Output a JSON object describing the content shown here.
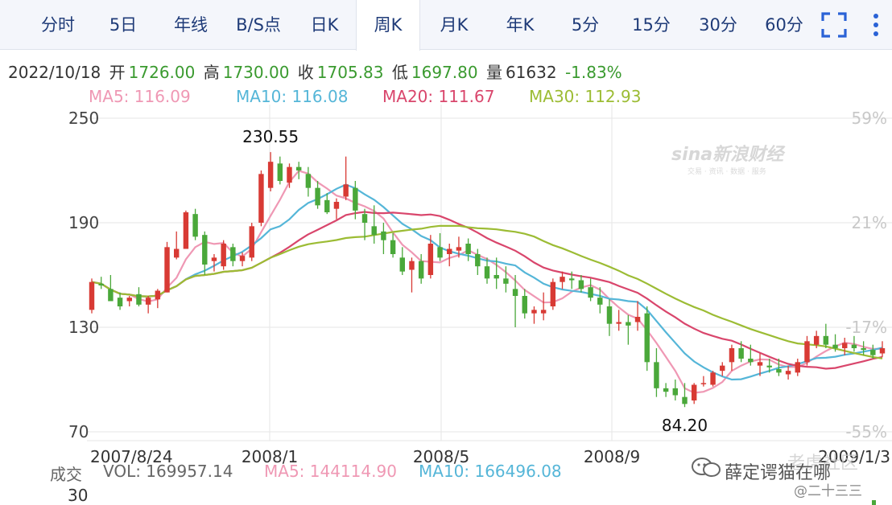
{
  "tabs": [
    {
      "label": "分时",
      "active": false
    },
    {
      "label": "5日",
      "active": false
    },
    {
      "label": "年线",
      "active": false
    },
    {
      "label": "B/S点",
      "active": false
    },
    {
      "label": "日K",
      "active": false
    },
    {
      "label": "周K",
      "active": true
    },
    {
      "label": "月K",
      "active": false
    },
    {
      "label": "年K",
      "active": false
    },
    {
      "label": "5分",
      "active": false
    },
    {
      "label": "15分",
      "active": false
    },
    {
      "label": "30分",
      "active": false
    },
    {
      "label": "60分",
      "active": false
    }
  ],
  "toolbar": {
    "fullscreen_icon": "fullscreen-icon",
    "more_icon": "more-vertical-icon"
  },
  "quote": {
    "date": "2022/10/18",
    "open_label": "开",
    "open": "1726.00",
    "high_label": "高",
    "high": "1730.00",
    "close_label": "收",
    "close": "1705.83",
    "low_label": "低",
    "low": "1697.80",
    "volume_label": "量",
    "volume": "61632",
    "change_pct": "-1.83%"
  },
  "ma_legend": [
    {
      "label": "MA5: 116.09",
      "color": "#ef98b4"
    },
    {
      "label": "MA10: 116.08",
      "color": "#55b6d8"
    },
    {
      "label": "MA20: 111.67",
      "color": "#d9466c"
    },
    {
      "label": "MA30: 112.93",
      "color": "#9cbc34"
    }
  ],
  "volume_legend": {
    "label": "成交",
    "vol": "VOL: 169957.14",
    "ma5": "MA5: 144114.90",
    "ma10": "MA10: 166496.08",
    "y_tick": "30"
  },
  "watermark": {
    "brand": "sina新浪财经",
    "tagline": "交易 · 资讯 · 数据 · 服务"
  },
  "overlay": {
    "line1": "老虎社区",
    "line2": "薛定谔猫在哪",
    "line3": "@二十三三"
  },
  "colors": {
    "up": "#d83a34",
    "down": "#4aa83a",
    "grid": "#e6e6e6"
  },
  "chart_data": {
    "type": "candlestick",
    "period": "weekly",
    "y_ticks": [
      "250",
      "190",
      "130",
      "70"
    ],
    "ylim": [
      70,
      250
    ],
    "pct_ticks": [
      "59%",
      "21%",
      "-17%",
      "-55%"
    ],
    "x_ticks": [
      "2007/8/24",
      "2008/1",
      "2008/5",
      "2008/9",
      "2009/1/3"
    ],
    "annotations": [
      {
        "label": "230.55",
        "value": 230.55,
        "index": 19
      },
      {
        "label": "84.20",
        "value": 84.2,
        "index": 63
      }
    ],
    "candles": [
      [
        140,
        158,
        138,
        156
      ],
      [
        155,
        159,
        152,
        154
      ],
      [
        152,
        160,
        145,
        145
      ],
      [
        147,
        150,
        140,
        142
      ],
      [
        145,
        148,
        142,
        147
      ],
      [
        149,
        153,
        142,
        143
      ],
      [
        143,
        148,
        138,
        147
      ],
      [
        146,
        152,
        141,
        151
      ],
      [
        150,
        179,
        150,
        176
      ],
      [
        170,
        185,
        169,
        175
      ],
      [
        175,
        197,
        175,
        196
      ],
      [
        195,
        198,
        180,
        182
      ],
      [
        183,
        185,
        160,
        166
      ],
      [
        168,
        172,
        162,
        170
      ],
      [
        165,
        180,
        163,
        178
      ],
      [
        176,
        178,
        165,
        168
      ],
      [
        168,
        173,
        165,
        171
      ],
      [
        170,
        190,
        168,
        188
      ],
      [
        190,
        220,
        188,
        218
      ],
      [
        210,
        230.55,
        208,
        225
      ],
      [
        224,
        228,
        212,
        214
      ],
      [
        213,
        224,
        210,
        222
      ],
      [
        222,
        225,
        215,
        220
      ],
      [
        218,
        222,
        205,
        210
      ],
      [
        210,
        214,
        198,
        200
      ],
      [
        203,
        207,
        195,
        196
      ],
      [
        198,
        204,
        192,
        202
      ],
      [
        205,
        228,
        203,
        212
      ],
      [
        210,
        214,
        192,
        197
      ],
      [
        195,
        198,
        180,
        190
      ],
      [
        188,
        200,
        178,
        183
      ],
      [
        185,
        190,
        172,
        180
      ],
      [
        180,
        184,
        170,
        172
      ],
      [
        170,
        176,
        160,
        162
      ],
      [
        163,
        170,
        150,
        168
      ],
      [
        168,
        172,
        155,
        158
      ],
      [
        160,
        183,
        158,
        178
      ],
      [
        176,
        184,
        168,
        170
      ],
      [
        172,
        178,
        165,
        175
      ],
      [
        174,
        182,
        170,
        176
      ],
      [
        178,
        181,
        168,
        172
      ],
      [
        172,
        175,
        160,
        165
      ],
      [
        165,
        170,
        155,
        158
      ],
      [
        160,
        170,
        152,
        158
      ],
      [
        158,
        165,
        150,
        155
      ],
      [
        152,
        160,
        130,
        148
      ],
      [
        148,
        152,
        135,
        138
      ],
      [
        138,
        142,
        132,
        140
      ],
      [
        138,
        150,
        134,
        140
      ],
      [
        142,
        158,
        140,
        156
      ],
      [
        156,
        162,
        152,
        159
      ],
      [
        158,
        162,
        152,
        157
      ],
      [
        157,
        160,
        150,
        152
      ],
      [
        153,
        158,
        145,
        147
      ],
      [
        147,
        153,
        138,
        143
      ],
      [
        142,
        146,
        125,
        132
      ],
      [
        132,
        140,
        128,
        133
      ],
      [
        133,
        137,
        120,
        131
      ],
      [
        133,
        145,
        128,
        136
      ],
      [
        138,
        142,
        105,
        110
      ],
      [
        110,
        118,
        90,
        95
      ],
      [
        95,
        98,
        90,
        93
      ],
      [
        95,
        100,
        88,
        91
      ],
      [
        90,
        98,
        84.2,
        86
      ],
      [
        88,
        98,
        86,
        97
      ],
      [
        98,
        102,
        96,
        98
      ],
      [
        97,
        105,
        96,
        104
      ],
      [
        105,
        110,
        102,
        108
      ],
      [
        110,
        120,
        105,
        118
      ],
      [
        118,
        122,
        110,
        112
      ],
      [
        112,
        120,
        108,
        110
      ],
      [
        108,
        115,
        102,
        110
      ],
      [
        108,
        112,
        104,
        107
      ],
      [
        106,
        112,
        102,
        104
      ],
      [
        103,
        108,
        100,
        105
      ],
      [
        104,
        112,
        102,
        110
      ],
      [
        110,
        125,
        108,
        122
      ],
      [
        120,
        128,
        118,
        125
      ],
      [
        125,
        132,
        118,
        120
      ],
      [
        120,
        126,
        116,
        118
      ],
      [
        118,
        124,
        114,
        121
      ],
      [
        120,
        125,
        116,
        118
      ],
      [
        118,
        122,
        114,
        117
      ],
      [
        117,
        120,
        112,
        114
      ],
      [
        115,
        122,
        113,
        118
      ]
    ],
    "ma_periods": [
      5,
      10,
      20,
      30
    ]
  }
}
